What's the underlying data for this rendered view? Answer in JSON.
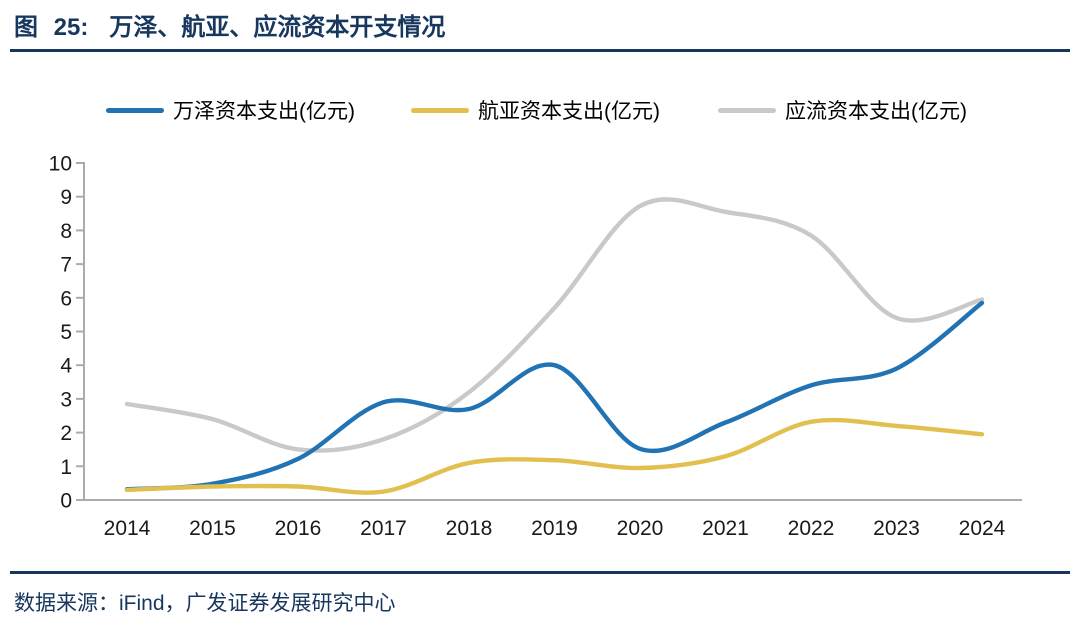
{
  "header": {
    "figure_label": "图 25:",
    "title": "万泽、航亚、应流资本开支情况"
  },
  "footer": {
    "source": "数据来源：iFind，广发证券发展研究中心"
  },
  "chart_data": {
    "type": "line",
    "title": "万泽、航亚、应流资本开支情况",
    "x": [
      2014,
      2015,
      2016,
      2017,
      2018,
      2019,
      2020,
      2021,
      2022,
      2023,
      2024
    ],
    "series": [
      {
        "name": "万泽资本支出(亿元)",
        "color": "#2173B3",
        "values": [
          0.32,
          0.48,
          1.22,
          2.9,
          2.7,
          4.0,
          1.52,
          2.3,
          3.4,
          3.9,
          5.85
        ]
      },
      {
        "name": "航亚资本支出(亿元)",
        "color": "#E2C04F",
        "values": [
          0.3,
          0.4,
          0.4,
          0.25,
          1.1,
          1.18,
          0.95,
          1.3,
          2.32,
          2.2,
          1.95
        ]
      },
      {
        "name": "应流资本支出(亿元)",
        "color": "#C9C9C9",
        "values": [
          2.85,
          2.4,
          1.5,
          1.8,
          3.2,
          5.7,
          8.72,
          8.55,
          7.85,
          5.4,
          5.95
        ]
      }
    ],
    "ylim": [
      0,
      10
    ],
    "ytick_step": 1,
    "xlabel": "",
    "ylabel": "",
    "grid": false,
    "legend_position": "top",
    "axis_color": "#ABABAB",
    "tick_label_color": "#1A1A1A",
    "line_width": 4.4
  }
}
